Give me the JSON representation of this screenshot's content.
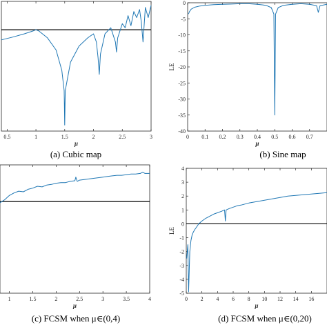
{
  "chart_data": [
    {
      "id": "a",
      "type": "line",
      "caption": "(a) Cubic map",
      "xlabel": "μ",
      "ylabel": "",
      "xlim": [
        0.4,
        3.0
      ],
      "ylim": [
        -2.5,
        0.7
      ],
      "xticks": [
        "0.5",
        "1",
        "1.5",
        "2",
        "2.5",
        "3"
      ],
      "xtick_values": [
        0.5,
        1,
        1.5,
        2,
        2.5,
        3
      ],
      "yticks": [],
      "zero_line": 0,
      "series": [
        {
          "color": "#1f77b4",
          "x": [
            0.4,
            0.6,
            0.8,
            0.95,
            1.0,
            1.05,
            1.2,
            1.35,
            1.45,
            1.49,
            1.5,
            1.51,
            1.6,
            1.75,
            1.9,
            2.0,
            2.05,
            2.08,
            2.1,
            2.12,
            2.2,
            2.3,
            2.38,
            2.4,
            2.42,
            2.5,
            2.55,
            2.6,
            2.65,
            2.7,
            2.75,
            2.8,
            2.83,
            2.86,
            2.9,
            2.95,
            3.0
          ],
          "y": [
            -0.25,
            -0.18,
            -0.1,
            -0.03,
            0.0,
            -0.03,
            -0.2,
            -0.5,
            -1.0,
            -1.5,
            -2.35,
            -1.5,
            -0.8,
            -0.4,
            -0.2,
            -0.1,
            -0.3,
            -0.7,
            -1.1,
            -0.6,
            -0.1,
            0.05,
            -0.3,
            -0.55,
            -0.2,
            0.15,
            0.05,
            0.35,
            0.1,
            0.45,
            0.3,
            0.5,
            0.2,
            -0.3,
            0.55,
            0.3,
            0.6
          ]
        }
      ]
    },
    {
      "id": "b",
      "type": "line",
      "caption": "(b) Sine map",
      "xlabel": "μ",
      "ylabel": "LE",
      "xlim": [
        0,
        0.8
      ],
      "ylim": [
        -40,
        0
      ],
      "xticks": [
        "0",
        "0.1",
        "0.2",
        "0.3",
        "0.4",
        "0.5",
        "0.6",
        "0.7"
      ],
      "xtick_values": [
        0,
        0.1,
        0.2,
        0.3,
        0.4,
        0.5,
        0.6,
        0.7
      ],
      "yticks": [
        "0",
        "-5",
        "-10",
        "-15",
        "-20",
        "-25",
        "-30",
        "-35",
        "-40"
      ],
      "ytick_values": [
        0,
        -5,
        -10,
        -15,
        -20,
        -25,
        -30,
        -35,
        -40
      ],
      "series": [
        {
          "color": "#1f77b4",
          "x": [
            0.005,
            0.01,
            0.02,
            0.04,
            0.07,
            0.1,
            0.15,
            0.2,
            0.25,
            0.3,
            0.35,
            0.4,
            0.45,
            0.48,
            0.495,
            0.5,
            0.505,
            0.52,
            0.55,
            0.6,
            0.65,
            0.7,
            0.74,
            0.75,
            0.76,
            0.8
          ],
          "y": [
            -3.5,
            -2.8,
            -2.0,
            -1.4,
            -1.0,
            -0.8,
            -0.6,
            -0.5,
            -0.4,
            -0.3,
            -0.3,
            -0.5,
            -0.8,
            -1.5,
            -3.5,
            -35,
            -3.5,
            -1.5,
            -0.8,
            -0.5,
            -0.3,
            -0.5,
            -0.9,
            -3.0,
            -0.9,
            -0.5
          ]
        }
      ]
    },
    {
      "id": "c",
      "type": "line",
      "caption": "(c) FCSM when μ∈(0,4)",
      "xlabel": "μ",
      "ylabel": "",
      "xlim": [
        0.8,
        4.0
      ],
      "ylim": [
        -1.5,
        0.6
      ],
      "xticks": [
        "1",
        "1.5",
        "2",
        "2.5",
        "3",
        "3.5",
        "4"
      ],
      "xtick_values": [
        1,
        1.5,
        2,
        2.5,
        3,
        3.5,
        4
      ],
      "yticks": [],
      "zero_line": 0,
      "series": [
        {
          "color": "#1f77b4",
          "x": [
            0.8,
            0.9,
            1.0,
            1.1,
            1.2,
            1.3,
            1.4,
            1.5,
            1.6,
            1.7,
            1.8,
            1.9,
            2.0,
            2.1,
            2.2,
            2.3,
            2.4,
            2.42,
            2.45,
            2.5,
            2.6,
            2.7,
            2.8,
            2.9,
            3.0,
            3.1,
            3.2,
            3.3,
            3.4,
            3.5,
            3.6,
            3.7,
            3.8,
            3.85,
            3.9,
            4.0
          ],
          "y": [
            -0.02,
            0.03,
            0.1,
            0.14,
            0.17,
            0.16,
            0.2,
            0.22,
            0.25,
            0.24,
            0.27,
            0.28,
            0.3,
            0.31,
            0.31,
            0.33,
            0.34,
            0.4,
            0.33,
            0.35,
            0.36,
            0.37,
            0.38,
            0.39,
            0.4,
            0.41,
            0.42,
            0.43,
            0.43,
            0.44,
            0.45,
            0.45,
            0.46,
            0.48,
            0.46,
            0.46
          ]
        }
      ]
    },
    {
      "id": "d",
      "type": "line",
      "caption": "(d) FCSM when μ∈(0,20)",
      "xlabel": "μ",
      "ylabel": "LE",
      "xlim": [
        0,
        18
      ],
      "ylim": [
        -5,
        4
      ],
      "xticks": [
        "0",
        "2",
        "4",
        "6",
        "8",
        "10",
        "12",
        "14",
        "16"
      ],
      "xtick_values": [
        0,
        2,
        4,
        6,
        8,
        10,
        12,
        14,
        16
      ],
      "yticks": [
        "4",
        "3",
        "2",
        "1",
        "0",
        "-1",
        "-2",
        "-3",
        "-4",
        "-5"
      ],
      "ytick_values": [
        4,
        3,
        2,
        1,
        0,
        -1,
        -2,
        -3,
        -4,
        -5
      ],
      "zero_line": 0,
      "series": [
        {
          "color": "#1f77b4",
          "x": [
            0.05,
            0.2,
            0.3,
            0.45,
            0.6,
            0.75,
            0.9,
            1.1,
            1.3,
            1.6,
            2.0,
            2.5,
            3.0,
            3.5,
            4.0,
            4.5,
            4.9,
            5.0,
            5.1,
            5.5,
            6.0,
            6.5,
            7.0,
            8.0,
            9.0,
            10.0,
            11.0,
            12.0,
            13.0,
            14.0,
            15.0,
            16.0,
            17.0,
            18.0
          ],
          "y": [
            -2.5,
            -1.5,
            -4.9,
            -2.0,
            -1.2,
            -0.8,
            -0.6,
            -0.4,
            -0.25,
            0.0,
            0.2,
            0.4,
            0.55,
            0.7,
            0.8,
            0.9,
            1.0,
            0.2,
            1.0,
            1.1,
            1.2,
            1.3,
            1.35,
            1.5,
            1.6,
            1.7,
            1.8,
            1.9,
            2.0,
            2.05,
            2.1,
            2.15,
            2.2,
            2.25
          ]
        }
      ]
    }
  ]
}
